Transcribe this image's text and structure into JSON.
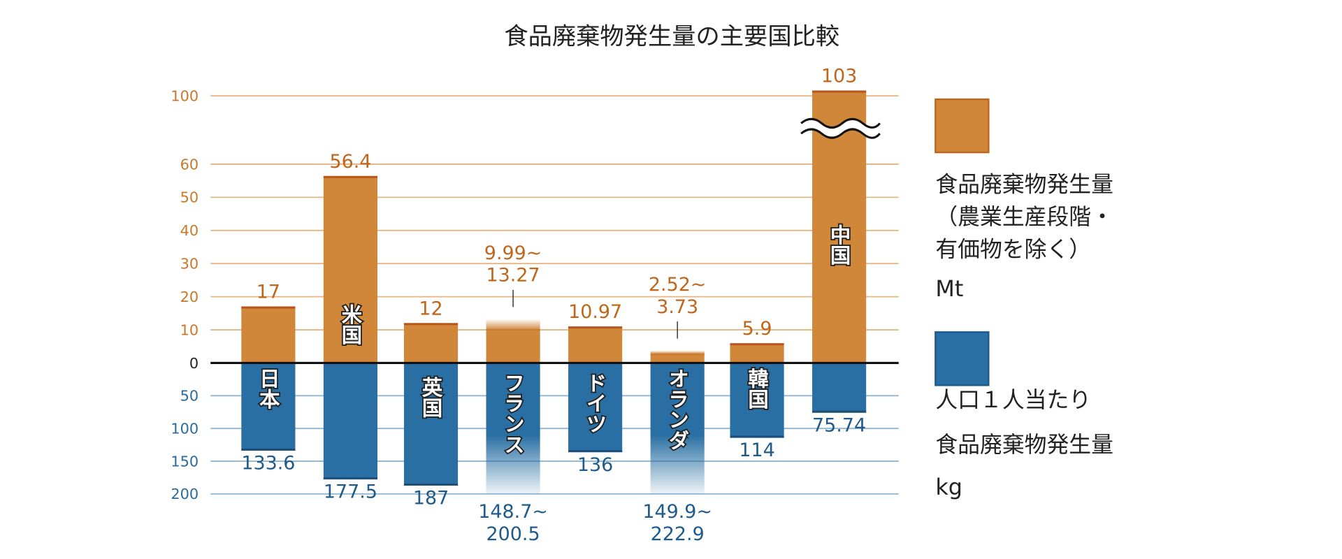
{
  "chart_data": {
    "type": "bar",
    "title": "食品廃棄物発生量の主要国比較",
    "categories": [
      "日本",
      "米国",
      "英国",
      "フランス",
      "ドイツ",
      "オランダ",
      "韓国",
      "中国"
    ],
    "series": [
      {
        "name": "食品廃棄物発生量（農業生産段階・有価物を除く）Mt",
        "color": "#d0873a",
        "values": [
          17,
          56.4,
          12,
          [
            9.99,
            13.27
          ],
          10.97,
          [
            2.52,
            3.73
          ],
          5.9,
          103
        ],
        "labels": [
          "17",
          "56.4",
          "12",
          "9.99~\n13.27",
          "10.97",
          "2.52~\n3.73",
          "5.9",
          "103"
        ]
      },
      {
        "name": "人口１人当たり食品廃棄物発生量 kg",
        "color": "#2a6fa3",
        "values": [
          133.6,
          177.5,
          187,
          [
            148.7,
            200.5
          ],
          136,
          [
            149.9,
            222.9
          ],
          114,
          75.74
        ],
        "labels": [
          "133.6",
          "177.5",
          "187",
          "148.7~\n200.5",
          "136",
          "149.9~\n222.9",
          "114",
          "75.74"
        ]
      }
    ],
    "upper_axis": {
      "ticks": [
        "0",
        "10",
        "20",
        "30",
        "40",
        "50",
        "60",
        "100"
      ],
      "axis_break": "60–100",
      "ylim": [
        0,
        100
      ]
    },
    "lower_axis": {
      "ticks": [
        "50",
        "100",
        "150",
        "200"
      ],
      "ylim": [
        0,
        200
      ],
      "direction": "downward"
    },
    "legend": {
      "placement": "right",
      "orange": {
        "lines": [
          "食品廃棄物発生量",
          "（農業生産段階・",
          " 有価物を除く）",
          "Mt"
        ]
      },
      "blue": {
        "lines": [
          "人口１人当たり",
          "食品廃棄物発生量",
          "kg"
        ]
      }
    },
    "grid": true
  }
}
